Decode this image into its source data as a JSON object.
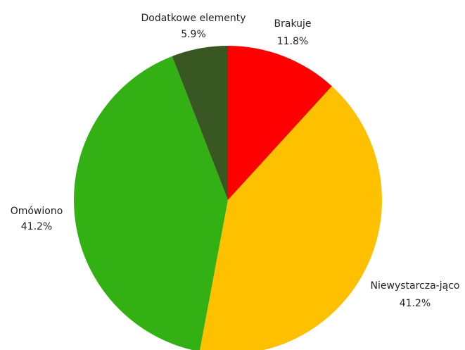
{
  "chart_data": {
    "type": "pie",
    "title": "",
    "start_angle_deg": 0,
    "direction": "clockwise",
    "legend": "none",
    "slices": [
      {
        "label": "Brakuje",
        "value": 11.8,
        "value_label": "11.8%",
        "color": "#FF0000"
      },
      {
        "label": "Niewystarcza-jąco",
        "value": 41.2,
        "value_label": "41.2%",
        "color": "#FFC000"
      },
      {
        "label": "Omówiono",
        "value": 41.2,
        "value_label": "41.2%",
        "color": "#33B014"
      },
      {
        "label": "Dodatkowe elementy",
        "value": 5.9,
        "value_label": "5.9%",
        "color": "#385723"
      }
    ]
  }
}
